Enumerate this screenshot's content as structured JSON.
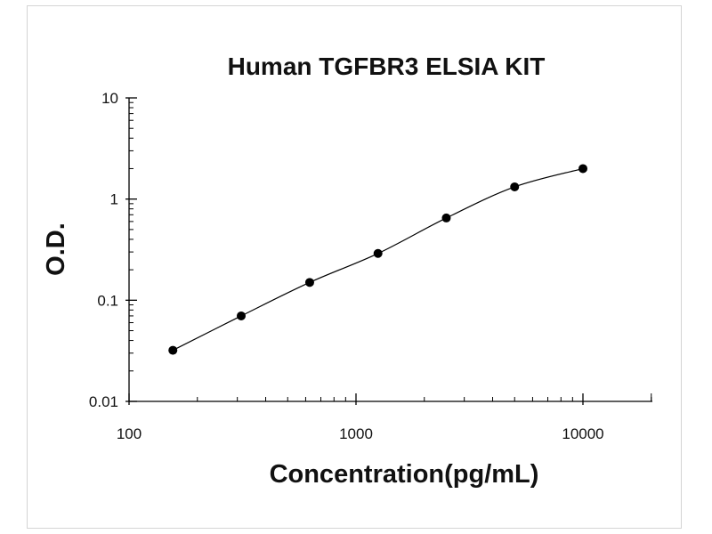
{
  "chart_data": {
    "type": "scatter",
    "title": "Human TGFBR3 ELSIA KIT",
    "xlabel": "Concentration(pg/mL)",
    "ylabel": "O.D.",
    "x_scale": "log",
    "y_scale": "log",
    "xlim": [
      100,
      20000
    ],
    "ylim": [
      0.01,
      10
    ],
    "x_ticks": [
      {
        "value": 100,
        "label": "100"
      },
      {
        "value": 1000,
        "label": "1000"
      },
      {
        "value": 10000,
        "label": "10000"
      }
    ],
    "y_ticks": [
      {
        "value": 0.01,
        "label": "0.01"
      },
      {
        "value": 0.1,
        "label": "0.1"
      },
      {
        "value": 1,
        "label": "1"
      },
      {
        "value": 10,
        "label": "10"
      }
    ],
    "grid": false,
    "legend": "none",
    "series": [
      {
        "x": [
          156,
          312,
          625,
          1250,
          2500,
          5000,
          10000
        ],
        "y": [
          0.032,
          0.07,
          0.15,
          0.29,
          0.65,
          1.32,
          2.0
        ],
        "markers": true,
        "line": "smooth"
      }
    ],
    "colors": {
      "marker": "#000000",
      "line": "#000000",
      "axis": "#000000"
    }
  }
}
